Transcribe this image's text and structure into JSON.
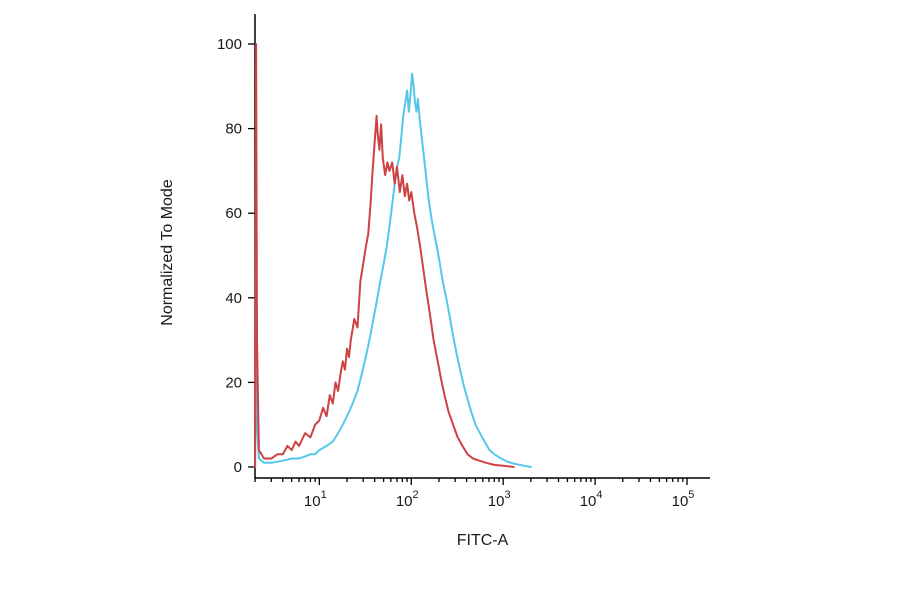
{
  "chart_data": {
    "type": "line",
    "subtype": "flow-cytometry-histogram",
    "title": "",
    "xlabel": "FITC-A",
    "ylabel": "Normalized To Mode",
    "x_scale": "log",
    "x_range_exp": [
      0.3,
      5.25
    ],
    "y_range": [
      0,
      100
    ],
    "x_tick_base": "10",
    "x_major_ticks_exp": [
      1,
      2,
      3,
      4,
      5
    ],
    "y_ticks": [
      0,
      20,
      40,
      60,
      80,
      100
    ],
    "grid": "off",
    "legend": "none",
    "axis_color": "#000000",
    "series": [
      {
        "name": "cyan",
        "color": "#55c8ea",
        "points": [
          [
            2.0,
            0
          ],
          [
            2.05,
            70
          ],
          [
            2.1,
            10
          ],
          [
            2.2,
            2
          ],
          [
            2.5,
            1
          ],
          [
            3,
            1
          ],
          [
            4,
            1.5
          ],
          [
            5,
            2
          ],
          [
            6,
            2
          ],
          [
            7,
            2.5
          ],
          [
            8,
            3
          ],
          [
            9,
            3
          ],
          [
            10,
            4
          ],
          [
            12,
            5
          ],
          [
            14,
            6
          ],
          [
            16,
            8
          ],
          [
            18,
            10
          ],
          [
            20,
            12
          ],
          [
            23,
            15
          ],
          [
            26,
            18
          ],
          [
            29,
            22
          ],
          [
            32,
            26
          ],
          [
            35,
            30
          ],
          [
            38,
            34
          ],
          [
            42,
            39
          ],
          [
            46,
            44
          ],
          [
            50,
            48
          ],
          [
            54,
            52
          ],
          [
            58,
            57
          ],
          [
            62,
            62
          ],
          [
            66,
            67
          ],
          [
            70,
            71
          ],
          [
            74,
            73
          ],
          [
            78,
            78
          ],
          [
            82,
            83
          ],
          [
            86,
            86
          ],
          [
            90,
            89
          ],
          [
            94,
            84
          ],
          [
            98,
            88
          ],
          [
            102,
            93
          ],
          [
            106,
            90
          ],
          [
            110,
            86
          ],
          [
            114,
            84
          ],
          [
            118,
            87
          ],
          [
            124,
            82
          ],
          [
            130,
            78
          ],
          [
            138,
            73
          ],
          [
            146,
            68
          ],
          [
            155,
            63
          ],
          [
            165,
            59
          ],
          [
            175,
            56
          ],
          [
            190,
            52
          ],
          [
            205,
            48
          ],
          [
            220,
            44
          ],
          [
            240,
            40
          ],
          [
            260,
            36
          ],
          [
            285,
            31
          ],
          [
            310,
            27
          ],
          [
            340,
            23
          ],
          [
            375,
            19
          ],
          [
            410,
            16
          ],
          [
            450,
            13
          ],
          [
            500,
            10
          ],
          [
            560,
            8
          ],
          [
            630,
            6
          ],
          [
            710,
            4
          ],
          [
            800,
            3
          ],
          [
            950,
            2
          ],
          [
            1100,
            1.3
          ],
          [
            1300,
            0.8
          ],
          [
            1600,
            0.4
          ],
          [
            2000,
            0
          ]
        ]
      },
      {
        "name": "red",
        "color": "#cf4244",
        "points": [
          [
            2.0,
            0
          ],
          [
            2.05,
            100
          ],
          [
            2.1,
            30
          ],
          [
            2.2,
            4
          ],
          [
            2.5,
            2
          ],
          [
            3,
            2
          ],
          [
            3.5,
            3
          ],
          [
            4,
            3
          ],
          [
            4.5,
            5
          ],
          [
            5,
            4
          ],
          [
            5.5,
            6
          ],
          [
            6,
            5
          ],
          [
            7,
            8
          ],
          [
            8,
            7
          ],
          [
            9,
            10
          ],
          [
            10,
            11
          ],
          [
            11,
            14
          ],
          [
            12,
            12
          ],
          [
            13,
            17
          ],
          [
            14,
            15
          ],
          [
            15,
            20
          ],
          [
            16,
            18
          ],
          [
            17,
            22
          ],
          [
            18,
            25
          ],
          [
            19,
            23
          ],
          [
            20,
            28
          ],
          [
            21,
            26
          ],
          [
            22,
            30
          ],
          [
            24,
            35
          ],
          [
            26,
            33
          ],
          [
            28,
            44
          ],
          [
            30,
            48
          ],
          [
            32,
            52
          ],
          [
            34,
            55
          ],
          [
            36,
            62
          ],
          [
            38,
            70
          ],
          [
            40,
            77
          ],
          [
            42,
            83
          ],
          [
            43,
            79
          ],
          [
            45,
            75
          ],
          [
            47,
            81
          ],
          [
            49,
            73
          ],
          [
            52,
            69
          ],
          [
            55,
            72
          ],
          [
            58,
            70
          ],
          [
            62,
            72
          ],
          [
            66,
            67
          ],
          [
            70,
            71
          ],
          [
            75,
            65
          ],
          [
            80,
            69
          ],
          [
            85,
            64
          ],
          [
            90,
            67
          ],
          [
            95,
            63
          ],
          [
            100,
            65
          ],
          [
            108,
            60
          ],
          [
            115,
            57
          ],
          [
            125,
            52
          ],
          [
            135,
            47
          ],
          [
            145,
            42
          ],
          [
            160,
            36
          ],
          [
            175,
            30
          ],
          [
            190,
            26
          ],
          [
            210,
            21
          ],
          [
            230,
            17
          ],
          [
            255,
            13
          ],
          [
            285,
            10
          ],
          [
            320,
            7
          ],
          [
            360,
            5
          ],
          [
            410,
            3
          ],
          [
            470,
            2
          ],
          [
            550,
            1.5
          ],
          [
            650,
            1
          ],
          [
            800,
            0.5
          ],
          [
            1000,
            0.3
          ],
          [
            1300,
            0
          ]
        ]
      }
    ]
  }
}
